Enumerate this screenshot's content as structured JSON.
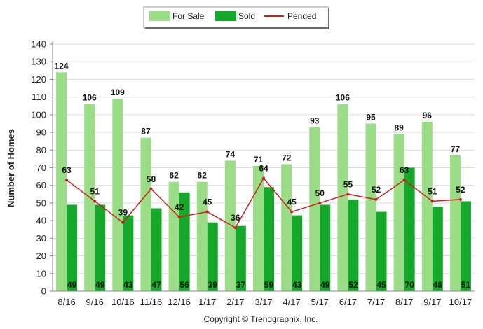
{
  "chart_data": {
    "type": "bar",
    "ylabel": "Number of Homes",
    "ylim": [
      0,
      140
    ],
    "yticks": [
      0,
      10,
      20,
      30,
      40,
      50,
      60,
      70,
      80,
      90,
      100,
      110,
      120,
      130,
      140
    ],
    "grid": true,
    "legend_position": "top-center",
    "categories": [
      "8/16",
      "9/16",
      "10/16",
      "11/16",
      "12/16",
      "1/17",
      "2/17",
      "3/17",
      "4/17",
      "5/17",
      "6/17",
      "7/17",
      "8/17",
      "9/17",
      "10/17"
    ],
    "series": [
      {
        "name": "For Sale",
        "kind": "bar",
        "color": "#9bdd86",
        "values": [
          124,
          106,
          109,
          87,
          62,
          62,
          74,
          71,
          72,
          93,
          106,
          95,
          89,
          96,
          77
        ]
      },
      {
        "name": "Sold",
        "kind": "bar",
        "color": "#16a82a",
        "values": [
          49,
          49,
          43,
          47,
          56,
          39,
          37,
          59,
          43,
          49,
          52,
          45,
          70,
          48,
          51
        ]
      },
      {
        "name": "Pended",
        "kind": "line",
        "color": "#cc1f1f",
        "values": [
          63,
          51,
          39,
          58,
          42,
          45,
          36,
          64,
          45,
          50,
          55,
          52,
          63,
          51,
          52
        ]
      }
    ]
  },
  "footer": {
    "copyright": "Copyright © Trendgraphix, Inc."
  }
}
